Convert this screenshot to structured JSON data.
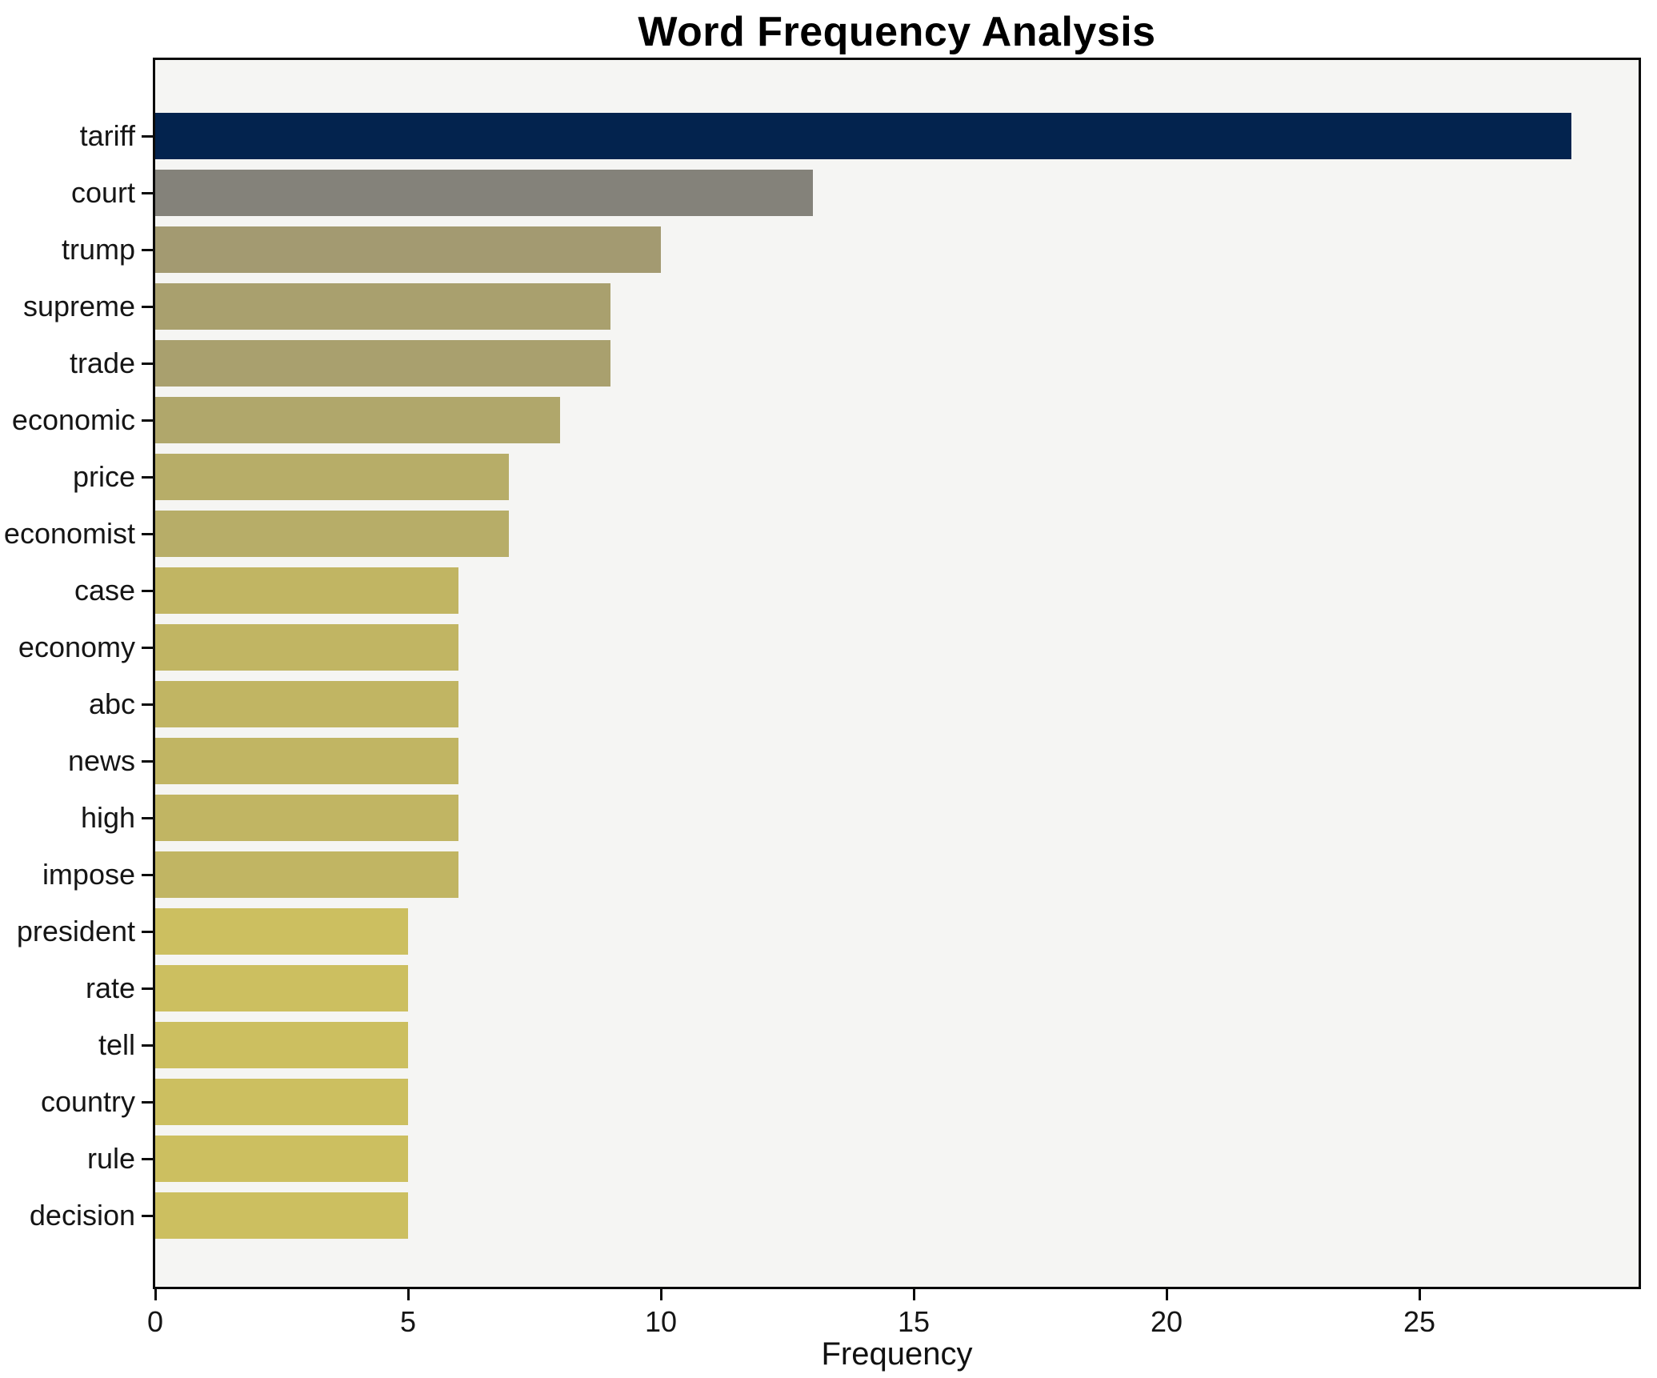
{
  "title": "Word Frequency Analysis",
  "axes": {
    "xlabel": "Frequency",
    "x_tick_labels": [
      "0",
      "5",
      "10",
      "15",
      "20",
      "25"
    ]
  },
  "chart_data": {
    "type": "bar",
    "orientation": "horizontal",
    "title": "Word Frequency Analysis",
    "xlabel": "Frequency",
    "ylabel": "",
    "xlim": [
      0,
      29.4
    ],
    "x_tick_values": [
      0,
      5,
      10,
      15,
      20,
      25
    ],
    "grid": false,
    "legend": false,
    "plot_background": "#f5f5f3",
    "spine_color": "#0a0a0a",
    "categories": [
      "tariff",
      "court",
      "trump",
      "supreme",
      "trade",
      "economic",
      "price",
      "economist",
      "case",
      "economy",
      "abc",
      "news",
      "high",
      "impose",
      "president",
      "rate",
      "tell",
      "country",
      "rule",
      "decision"
    ],
    "values": [
      28,
      13,
      10,
      9,
      9,
      8,
      7,
      7,
      6,
      6,
      6,
      6,
      6,
      6,
      5,
      5,
      5,
      5,
      5,
      5
    ],
    "bar_colors": [
      "#03234e",
      "#84827a",
      "#a39a71",
      "#a9a06e",
      "#a9a06e",
      "#b0a76b",
      "#b7ad68",
      "#b7ad68",
      "#c1b563",
      "#c1b563",
      "#c1b563",
      "#c1b563",
      "#c1b563",
      "#c1b563",
      "#ccbf60",
      "#ccbf60",
      "#ccbf60",
      "#ccbf60",
      "#ccbf60",
      "#ccbf60"
    ]
  }
}
